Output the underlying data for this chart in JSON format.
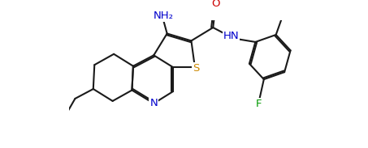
{
  "bg_color": "#ffffff",
  "line_color": "#1a1a1a",
  "atom_colors": {
    "N": "#0000cc",
    "S": "#cc8800",
    "F": "#009900",
    "O": "#cc0000",
    "C": "#1a1a1a"
  },
  "bond_width": 1.5,
  "font_size": 9.5,
  "xlim": [
    -0.5,
    9.0
  ],
  "ylim": [
    -0.3,
    5.0
  ]
}
